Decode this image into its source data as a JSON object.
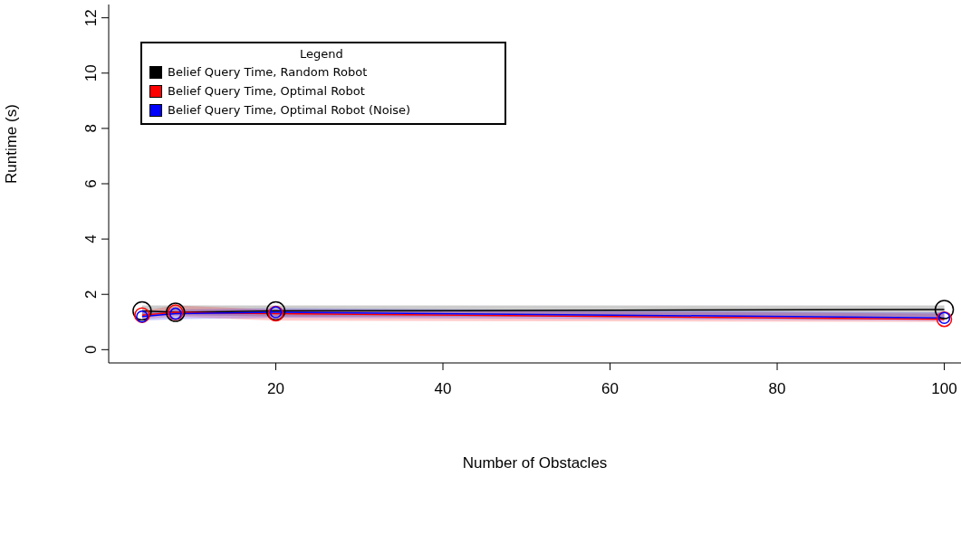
{
  "chart_data": {
    "type": "line",
    "xlabel": "Number of Obstacles",
    "ylabel": "Runtime (s)",
    "legend_title": "Legend",
    "x": [
      4,
      8,
      20,
      100
    ],
    "series": [
      {
        "name": "Belief Query Time, Random Robot",
        "color": "#000000",
        "values": [
          1.4,
          1.35,
          1.4,
          1.45
        ],
        "lower": [
          1.25,
          1.25,
          1.2,
          1.2
        ],
        "upper": [
          1.6,
          1.6,
          1.6,
          1.6
        ]
      },
      {
        "name": "Belief Query Time, Optimal Robot",
        "color": "#ff0000",
        "values": [
          1.25,
          1.35,
          1.3,
          1.1
        ],
        "lower": [
          1.1,
          1.2,
          1.05,
          1.0
        ],
        "upper": [
          1.4,
          1.6,
          1.45,
          1.3
        ]
      },
      {
        "name": "Belief Query Time, Optimal Robot (Noise)",
        "color": "#0000ff",
        "values": [
          1.2,
          1.3,
          1.35,
          1.15
        ],
        "lower": [
          1.05,
          1.1,
          1.15,
          1.05
        ],
        "upper": [
          1.35,
          1.45,
          1.5,
          1.35
        ]
      }
    ],
    "xlim": [
      0,
      102
    ],
    "xticks": [
      20,
      40,
      60,
      80,
      100
    ],
    "ylim": [
      -0.48,
      12.48
    ],
    "yticks": [
      0,
      2,
      4,
      6,
      8,
      10,
      12
    ],
    "grid": false,
    "legend": "top left",
    "marker": "circle",
    "line_style": "solid"
  }
}
